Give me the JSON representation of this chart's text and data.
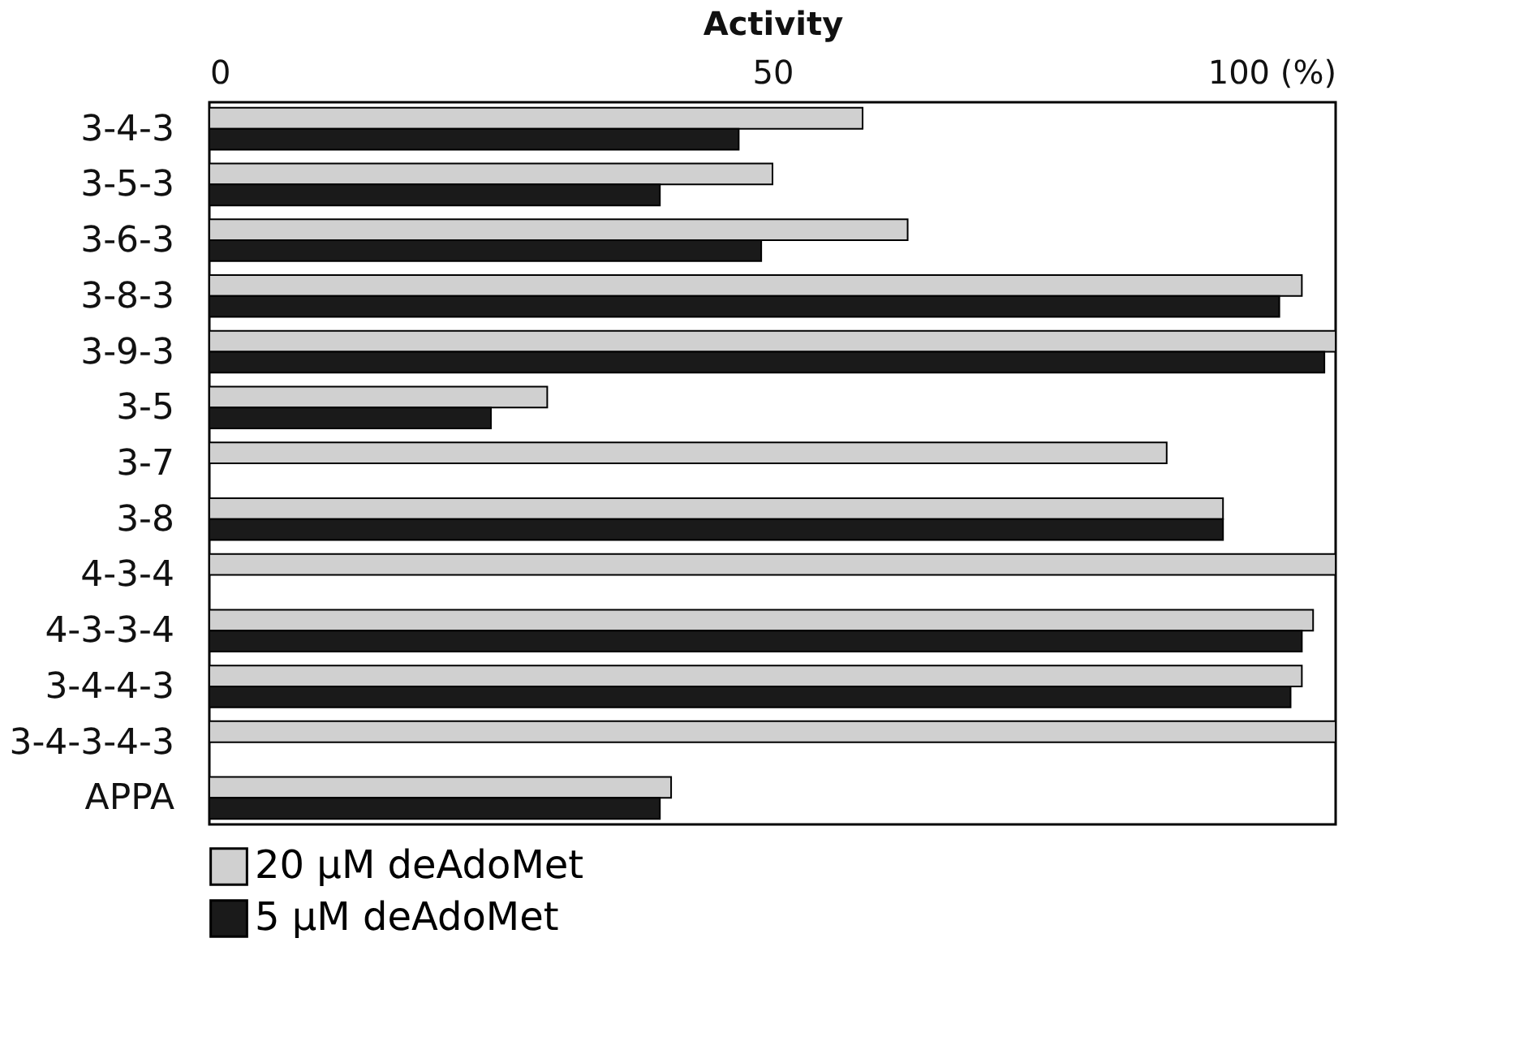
{
  "chart_data": {
    "type": "bar",
    "orientation": "horizontal",
    "xlabel": "Activity",
    "categories": [
      "3-4-3",
      "3-5-3",
      "3-6-3",
      "3-8-3",
      "3-9-3",
      "3-5",
      "3-7",
      "3-8",
      "4-3-4",
      "4-3-3-4",
      "3-4-4-3",
      "3-4-3-4-3",
      "APPA"
    ],
    "series": [
      {
        "name": "20 µM deAdoMet",
        "color": "#d0d0d0",
        "values": [
          58,
          50,
          62,
          97,
          100,
          30,
          85,
          90,
          100,
          98,
          97,
          100,
          41
        ]
      },
      {
        "name": "5 µM deAdoMet",
        "color": "#1a1a1a",
        "values": [
          47,
          40,
          49,
          95,
          99,
          25,
          null,
          90,
          null,
          97,
          96,
          null,
          40
        ]
      }
    ],
    "xlim": [
      0,
      100
    ],
    "xticks": [
      0,
      50,
      {
        "value": 100,
        "label": "100 (%)"
      }
    ],
    "grid": false,
    "legend": "bottom"
  }
}
